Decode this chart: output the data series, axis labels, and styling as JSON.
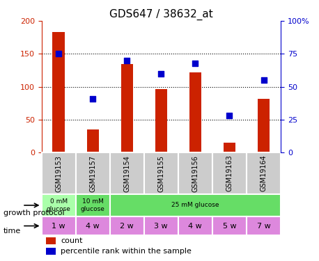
{
  "title": "GDS647 / 38632_at",
  "samples": [
    "GSM19153",
    "GSM19157",
    "GSM19154",
    "GSM19155",
    "GSM19156",
    "GSM19163",
    "GSM19164"
  ],
  "counts": [
    183,
    35,
    135,
    97,
    122,
    15,
    82
  ],
  "percentiles": [
    75,
    41,
    70,
    60,
    68,
    28,
    55
  ],
  "left_ylim": [
    0,
    200
  ],
  "right_ylim": [
    0,
    100
  ],
  "left_yticks": [
    0,
    50,
    100,
    150,
    200
  ],
  "right_yticks": [
    0,
    25,
    50,
    75,
    100
  ],
  "right_yticklabels": [
    "0",
    "25",
    "50",
    "75",
    "100%"
  ],
  "bar_color": "#cc2200",
  "dot_color": "#0000cc",
  "grid_color": "black",
  "protocol_row": [
    {
      "label": "0 mM\nglucose",
      "span": 1,
      "color": "#ccffcc"
    },
    {
      "label": "10 mM\nglucose",
      "span": 1,
      "color": "#66dd66"
    },
    {
      "label": "25 mM glucose",
      "span": 5,
      "color": "#66dd66"
    }
  ],
  "time_row": [
    {
      "label": "1 w",
      "color": "#ee88ee"
    },
    {
      "label": "4 w",
      "color": "#ee88ee"
    },
    {
      "label": "2 w",
      "color": "#ee88ee"
    },
    {
      "label": "3 w",
      "color": "#ee88ee"
    },
    {
      "label": "4 w",
      "color": "#ee88ee"
    },
    {
      "label": "5 w",
      "color": "#ee88ee"
    },
    {
      "label": "7 w",
      "color": "#ee88ee"
    }
  ],
  "protocol_colors": [
    "#ccffcc",
    "#66dd66",
    "#66dd66"
  ],
  "time_color": "#dd88dd",
  "xlabel_protocol": "growth protocol",
  "xlabel_time": "time",
  "legend_count_label": "count",
  "legend_pct_label": "percentile rank within the sample",
  "sample_bg_color": "#cccccc",
  "axis_label_color_left": "#cc2200",
  "axis_label_color_right": "#0000cc"
}
